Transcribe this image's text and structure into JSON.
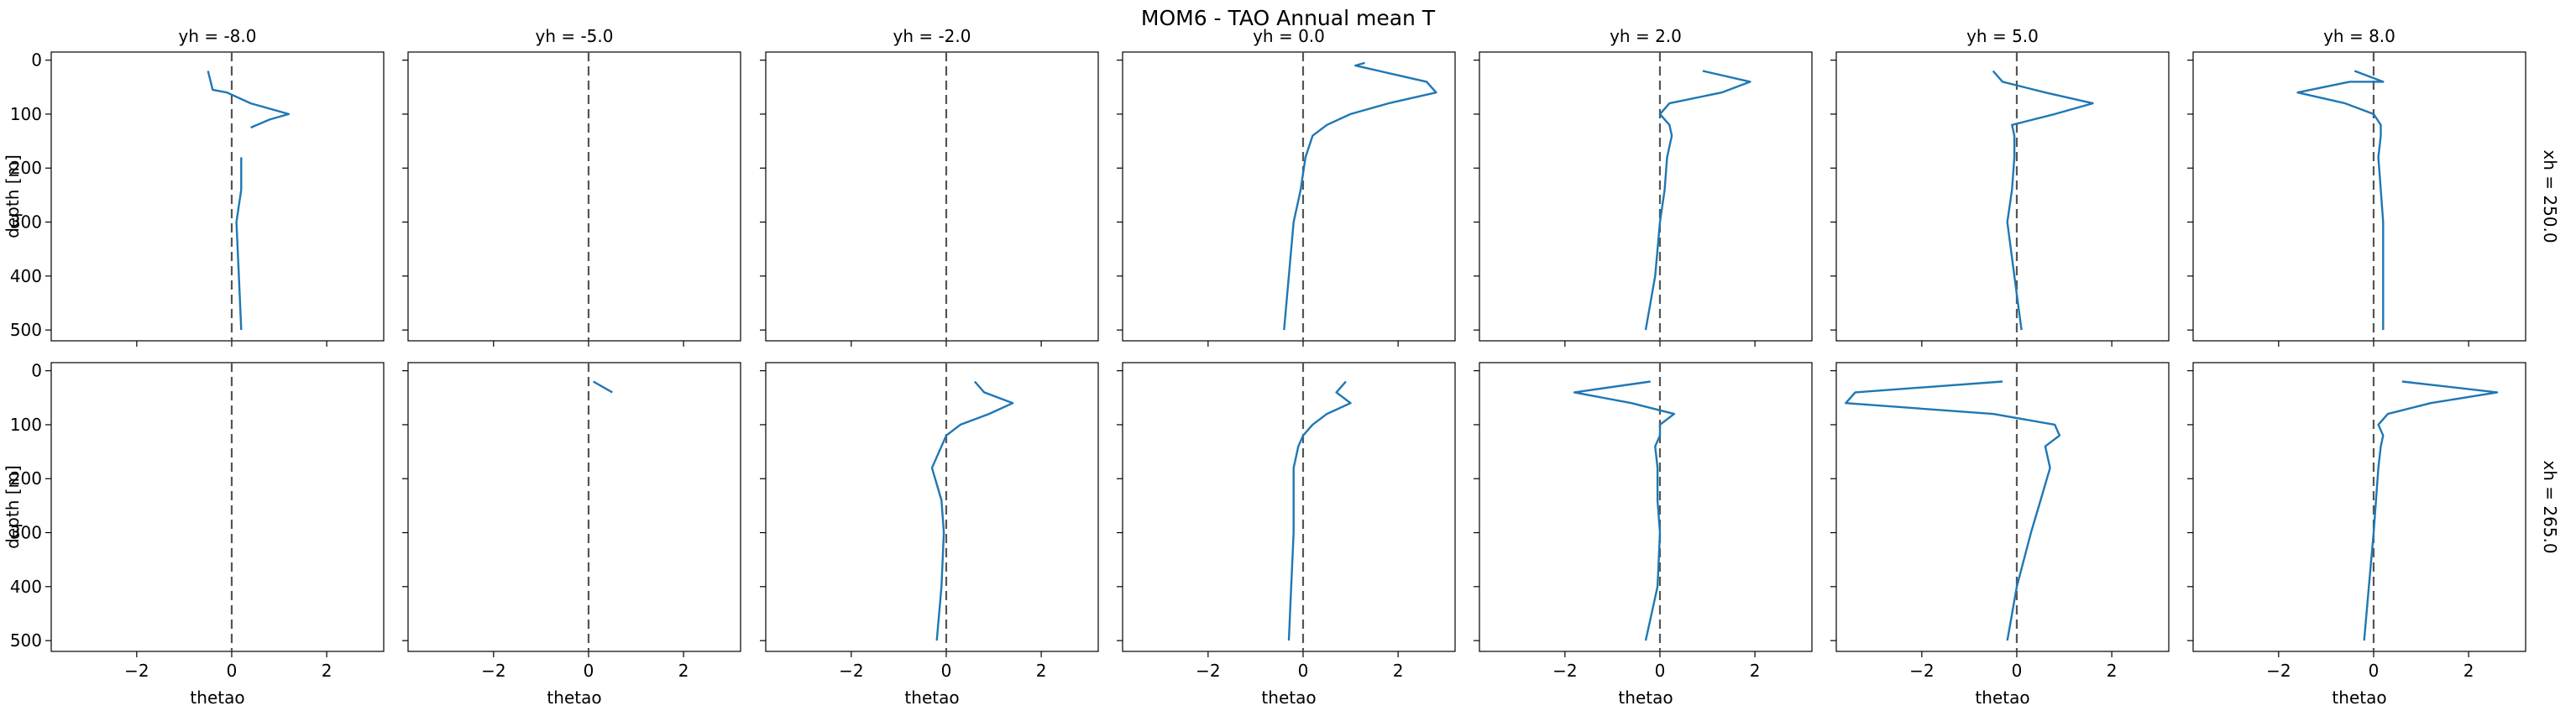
{
  "figure": {
    "title": "MOM6 - TAO Annual mean T",
    "col_prefix": "yh = ",
    "row_prefix": "xh = ",
    "col_titles": [
      "-8.0",
      "-5.0",
      "-2.0",
      "0.0",
      "2.0",
      "5.0",
      "8.0"
    ],
    "row_titles": [
      "250.0",
      "265.0"
    ]
  },
  "chart_data": {
    "type": "line",
    "xlabel": "thetao",
    "ylabel": "depth [m]",
    "xlim": [
      -3.8,
      3.2
    ],
    "ylim": [
      520,
      -15
    ],
    "xticks": [
      -2,
      0,
      2
    ],
    "yticks": [
      0,
      100,
      200,
      300,
      400,
      500
    ],
    "reference_line_x": 0,
    "line_color": "#1f77b4",
    "ref_color": "#555555",
    "panels": [
      {
        "row": 0,
        "col": 0,
        "segments": [
          [
            [
              -0.5,
              20
            ],
            [
              -0.4,
              55
            ],
            [
              -0.1,
              60
            ],
            [
              0.4,
              80
            ],
            [
              1.2,
              100
            ],
            [
              0.8,
              110
            ],
            [
              0.4,
              125
            ]
          ],
          [
            [
              0.2,
              180
            ],
            [
              0.2,
              240
            ],
            [
              0.1,
              300
            ],
            [
              0.15,
              400
            ],
            [
              0.2,
              500
            ]
          ]
        ]
      },
      {
        "row": 0,
        "col": 1,
        "segments": []
      },
      {
        "row": 0,
        "col": 2,
        "segments": []
      },
      {
        "row": 0,
        "col": 3,
        "segments": [
          [
            [
              1.3,
              5
            ],
            [
              1.1,
              10
            ],
            [
              2.6,
              40
            ],
            [
              2.8,
              60
            ],
            [
              1.8,
              80
            ],
            [
              1.0,
              100
            ],
            [
              0.5,
              120
            ],
            [
              0.2,
              140
            ],
            [
              0.05,
              180
            ],
            [
              -0.05,
              240
            ],
            [
              -0.2,
              300
            ],
            [
              -0.3,
              400
            ],
            [
              -0.4,
              500
            ]
          ]
        ]
      },
      {
        "row": 0,
        "col": 4,
        "segments": [
          [
            [
              0.9,
              20
            ],
            [
              1.9,
              40
            ],
            [
              1.3,
              60
            ],
            [
              0.2,
              80
            ],
            [
              0.0,
              100
            ],
            [
              0.2,
              120
            ],
            [
              0.25,
              140
            ],
            [
              0.15,
              180
            ],
            [
              0.1,
              240
            ],
            [
              0.0,
              300
            ],
            [
              -0.1,
              400
            ],
            [
              -0.3,
              500
            ]
          ]
        ]
      },
      {
        "row": 0,
        "col": 5,
        "segments": [
          [
            [
              -0.5,
              20
            ],
            [
              -0.3,
              40
            ],
            [
              0.6,
              60
            ],
            [
              1.6,
              80
            ],
            [
              0.8,
              100
            ],
            [
              -0.1,
              120
            ],
            [
              -0.05,
              140
            ],
            [
              -0.05,
              180
            ],
            [
              -0.1,
              240
            ],
            [
              -0.2,
              300
            ],
            [
              -0.05,
              400
            ],
            [
              0.1,
              500
            ]
          ]
        ]
      },
      {
        "row": 0,
        "col": 6,
        "segments": [
          [
            [
              -0.4,
              20
            ],
            [
              0.2,
              40
            ],
            [
              -0.5,
              40
            ],
            [
              -1.6,
              60
            ],
            [
              -0.6,
              80
            ],
            [
              0.0,
              100
            ],
            [
              0.15,
              120
            ],
            [
              0.15,
              140
            ],
            [
              0.1,
              180
            ],
            [
              0.15,
              240
            ],
            [
              0.2,
              300
            ],
            [
              0.2,
              400
            ],
            [
              0.2,
              500
            ]
          ]
        ]
      },
      {
        "row": 1,
        "col": 0,
        "segments": []
      },
      {
        "row": 1,
        "col": 1,
        "segments": [
          [
            [
              0.1,
              20
            ],
            [
              0.5,
              40
            ]
          ]
        ]
      },
      {
        "row": 1,
        "col": 2,
        "segments": [
          [
            [
              0.6,
              20
            ],
            [
              0.8,
              40
            ],
            [
              1.4,
              60
            ],
            [
              0.9,
              80
            ],
            [
              0.3,
              100
            ],
            [
              0.0,
              120
            ],
            [
              -0.1,
              140
            ],
            [
              -0.3,
              180
            ],
            [
              -0.1,
              240
            ],
            [
              -0.05,
              300
            ],
            [
              -0.1,
              400
            ],
            [
              -0.2,
              500
            ]
          ]
        ]
      },
      {
        "row": 1,
        "col": 3,
        "segments": [
          [
            [
              0.9,
              20
            ],
            [
              0.7,
              40
            ],
            [
              1.0,
              60
            ],
            [
              0.5,
              80
            ],
            [
              0.2,
              100
            ],
            [
              0.0,
              120
            ],
            [
              -0.1,
              140
            ],
            [
              -0.2,
              180
            ],
            [
              -0.2,
              240
            ],
            [
              -0.2,
              300
            ],
            [
              -0.25,
              400
            ],
            [
              -0.3,
              500
            ]
          ]
        ]
      },
      {
        "row": 1,
        "col": 4,
        "segments": [
          [
            [
              -0.2,
              20
            ],
            [
              -1.8,
              40
            ],
            [
              -0.6,
              60
            ],
            [
              0.3,
              80
            ],
            [
              0.0,
              100
            ],
            [
              0.0,
              120
            ],
            [
              -0.1,
              140
            ],
            [
              -0.05,
              180
            ],
            [
              -0.05,
              240
            ],
            [
              0.0,
              300
            ],
            [
              -0.05,
              400
            ],
            [
              -0.3,
              500
            ]
          ]
        ]
      },
      {
        "row": 1,
        "col": 5,
        "segments": [
          [
            [
              -0.3,
              20
            ],
            [
              -3.4,
              40
            ],
            [
              -3.6,
              60
            ],
            [
              -0.5,
              80
            ],
            [
              0.8,
              100
            ],
            [
              0.9,
              120
            ],
            [
              0.6,
              140
            ],
            [
              0.7,
              180
            ],
            [
              0.5,
              240
            ],
            [
              0.3,
              300
            ],
            [
              0.0,
              400
            ],
            [
              -0.2,
              500
            ]
          ]
        ]
      },
      {
        "row": 1,
        "col": 6,
        "segments": [
          [
            [
              0.6,
              20
            ],
            [
              2.6,
              40
            ],
            [
              1.2,
              60
            ],
            [
              0.3,
              80
            ],
            [
              0.1,
              100
            ],
            [
              0.2,
              120
            ],
            [
              0.15,
              140
            ],
            [
              0.1,
              180
            ],
            [
              0.05,
              240
            ],
            [
              0.0,
              300
            ],
            [
              -0.1,
              400
            ],
            [
              -0.2,
              500
            ]
          ]
        ]
      }
    ]
  }
}
